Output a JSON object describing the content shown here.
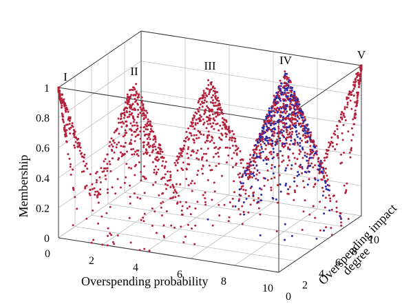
{
  "chart_data": {
    "type": "scatter",
    "title": "",
    "xlabel": "Overspending probability",
    "ylabel": "Overspending impact degree",
    "zlabel": "Membership",
    "x_ticks": [
      "0",
      "2",
      "4",
      "6",
      "8",
      "10"
    ],
    "y_ticks": [
      "0",
      "2",
      "4",
      "6",
      "8",
      "10"
    ],
    "z_ticks": [
      "0",
      "0.2",
      "0.4",
      "0.6",
      "0.8",
      "1"
    ],
    "xlim": [
      0,
      10
    ],
    "ylim": [
      0,
      10
    ],
    "zlim": [
      0,
      1
    ],
    "grid": true,
    "peak_labels": [
      "I",
      "II",
      "III",
      "IV",
      "V"
    ],
    "series": [
      {
        "color": "#b5203a",
        "clusters": [
          {
            "label": "I",
            "center_x": 0,
            "center_y": 0,
            "peak": 1
          },
          {
            "label": "II",
            "center_x": 2.5,
            "center_y": 2.5,
            "peak": 1
          },
          {
            "label": "III",
            "center_x": 5,
            "center_y": 5,
            "peak": 1
          },
          {
            "label": "IV",
            "center_x": 7.5,
            "center_y": 7.5,
            "peak": 1
          },
          {
            "label": "V",
            "center_x": 10,
            "center_y": 10,
            "peak": 1
          }
        ]
      },
      {
        "color": "#2a2aa8",
        "clusters": [
          {
            "label": "IV",
            "center_x": 7.5,
            "center_y": 7.5,
            "peak": 1
          }
        ]
      }
    ]
  }
}
